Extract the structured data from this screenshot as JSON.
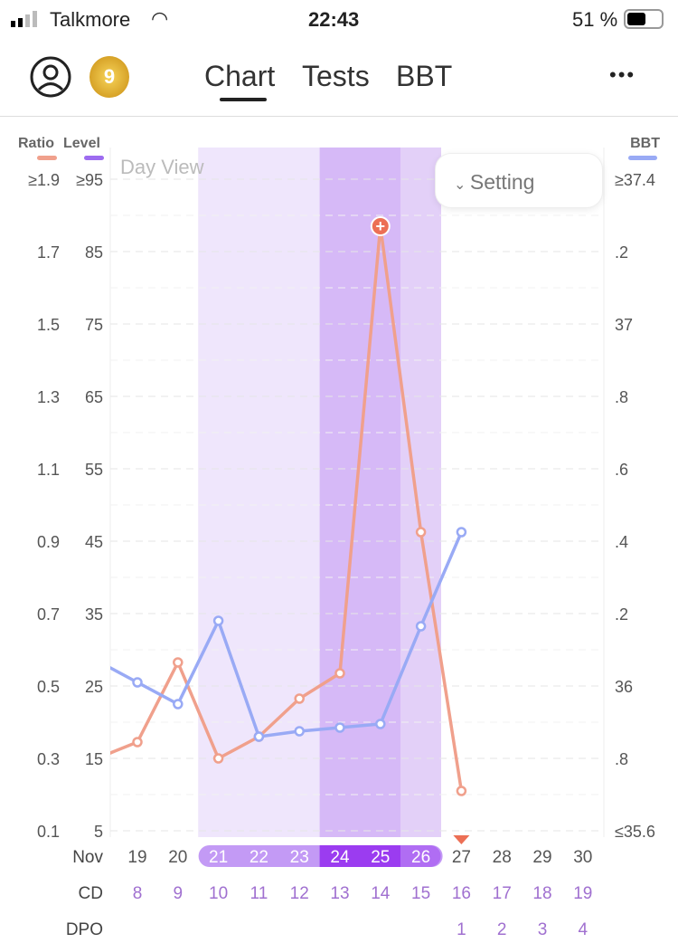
{
  "status": {
    "carrier": "Talkmore",
    "time": "22:43",
    "battery": "51 %"
  },
  "nav": {
    "badge": "9",
    "tabs": [
      "Chart",
      "Tests",
      "BBT"
    ],
    "active_tab": "Chart",
    "more": "•••"
  },
  "chart": {
    "day_view": "Day View",
    "setting": "Setting",
    "legend": {
      "ratio": "Ratio",
      "level": "Level",
      "bbt": "BBT"
    },
    "ratio_ticks": [
      "≥1.9",
      "1.7",
      "1.5",
      "1.3",
      "1.1",
      "0.9",
      "0.7",
      "0.5",
      "0.3",
      "0.1"
    ],
    "level_ticks": [
      "≥95",
      "85",
      "75",
      "65",
      "55",
      "45",
      "35",
      "25",
      "15",
      "5"
    ],
    "bbt_ticks": [
      "≥37.4",
      ".2",
      "37",
      ".8",
      ".6",
      ".4",
      ".2",
      "36",
      ".8",
      "≤35.6"
    ],
    "row_labels": {
      "month": "Nov",
      "cd": "CD",
      "dpo": "DPO"
    },
    "dates": [
      "19",
      "20",
      "21",
      "22",
      "23",
      "24",
      "25",
      "26",
      "27",
      "28",
      "29",
      "30"
    ],
    "cd": [
      "8",
      "9",
      "10",
      "11",
      "12",
      "13",
      "14",
      "15",
      "16",
      "17",
      "18",
      "19"
    ],
    "dpo": [
      "",
      "",
      "",
      "",
      "",
      "",
      "",
      "",
      "1",
      "2",
      "3",
      "4"
    ]
  },
  "chart_data": {
    "type": "line",
    "x": [
      18,
      19,
      20,
      21,
      22,
      23,
      24,
      25,
      26,
      27
    ],
    "series": [
      {
        "name": "Ratio",
        "color": "#f0a08c",
        "values": [
          0.3,
          0.345,
          0.565,
          0.3,
          0.36,
          0.465,
          0.535,
          1.77,
          0.925,
          0.21
        ],
        "axis": "left",
        "ylim": [
          0.1,
          1.9
        ]
      },
      {
        "name": "BBT",
        "color": "#99aaf5",
        "values": [
          36.07,
          36.01,
          35.95,
          36.18,
          35.86,
          35.875,
          35.885,
          35.895,
          36.165,
          36.425
        ],
        "axis": "right",
        "ylim": [
          35.6,
          37.4
        ]
      }
    ],
    "fertile_days": [
      21,
      22,
      23,
      24,
      25,
      26
    ],
    "peak_days": [
      24,
      25
    ],
    "high_days": [
      26
    ],
    "peak_marker_day": 25,
    "ovulation_day": 27
  }
}
